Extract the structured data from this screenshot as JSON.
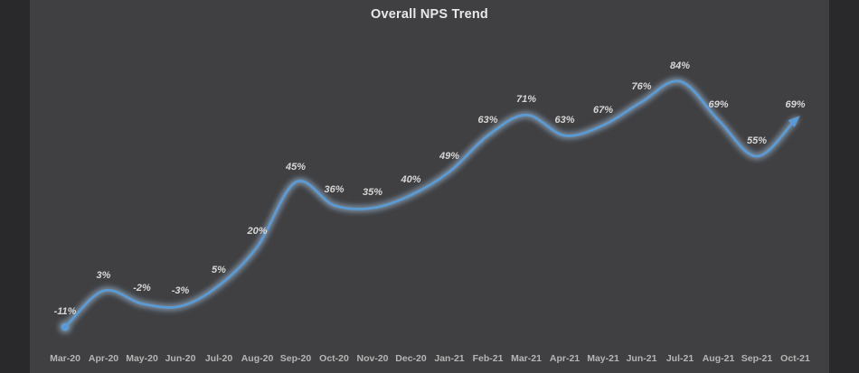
{
  "window": {
    "background_color": "#29292b",
    "panel_color": "#404042"
  },
  "chart_data": {
    "type": "line",
    "title": "Overall NPS Trend",
    "categories": [
      "Mar-20",
      "Apr-20",
      "May-20",
      "Jun-20",
      "Jul-20",
      "Aug-20",
      "Sep-20",
      "Oct-20",
      "Nov-20",
      "Dec-20",
      "Jan-21",
      "Feb-21",
      "Mar-21",
      "Apr-21",
      "May-21",
      "Jun-21",
      "Jul-21",
      "Aug-21",
      "Sep-21",
      "Oct-21"
    ],
    "values": [
      -11,
      3,
      -2,
      -3,
      5,
      20,
      45,
      36,
      35,
      40,
      49,
      63,
      71,
      63,
      67,
      76,
      84,
      69,
      55,
      69
    ],
    "point_labels": [
      "-11%",
      "3%",
      "-2%",
      "-3%",
      "5%",
      "20%",
      "45%",
      "36%",
      "35%",
      "40%",
      "49%",
      "63%",
      "71%",
      "63%",
      "67%",
      "76%",
      "84%",
      "69%",
      "55%",
      "69%"
    ],
    "xlabel": "",
    "ylabel": "",
    "ylim": [
      -20,
      100
    ],
    "grid": false,
    "legend": false,
    "smooth_line": true,
    "start_marker": true,
    "end_arrow": true,
    "line_color": "#5b9bd5",
    "glow_color": "#a9cbec",
    "data_label_color": "#d6d6d6",
    "axis_label_color": "#b5b5b5",
    "title_color": "#e8e8e8"
  }
}
